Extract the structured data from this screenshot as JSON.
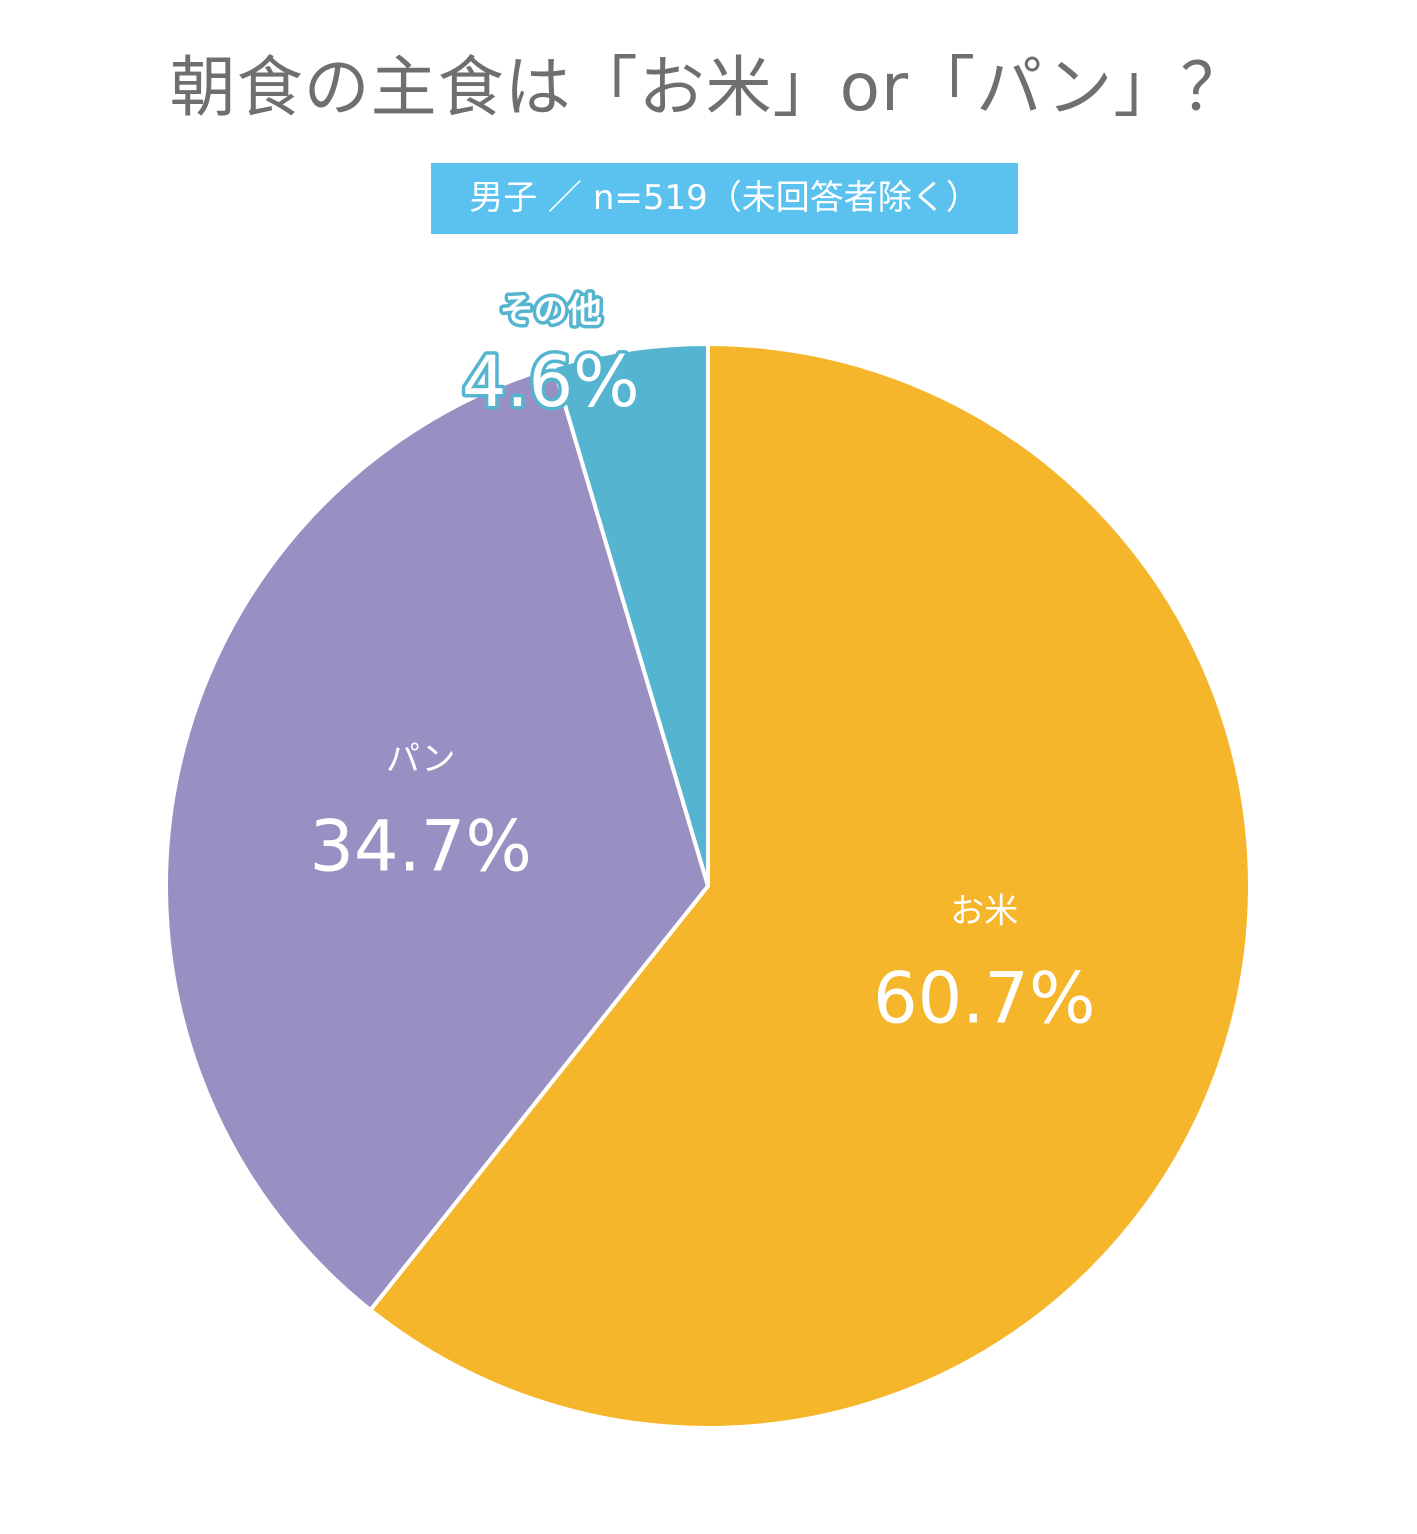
{
  "chart_data": {
    "type": "pie",
    "title": "朝食の主食は「お米」or「パン」？",
    "subtitle": "男子 ／ n=519（未回答者除く）",
    "unit": "%",
    "direction": "clockwise-from-top",
    "slices": [
      {
        "label": "お米",
        "value": 60.7,
        "display": "60.7%",
        "color": "#f6b62b",
        "label_color": "#ffffff",
        "outside": false
      },
      {
        "label": "パン",
        "value": 34.7,
        "display": "34.7%",
        "color": "#9a8fc3",
        "label_color": "#ffffff",
        "outside": false
      },
      {
        "label": "その他",
        "value": 4.6,
        "display": "4.6%",
        "color": "#55b4cf",
        "label_color": "#ffffff",
        "outside": true
      }
    ]
  },
  "colors": {
    "title_text": "#6f6f6f",
    "subtitle_background": "#5bc2f0",
    "slice_border": "#ffffff"
  }
}
